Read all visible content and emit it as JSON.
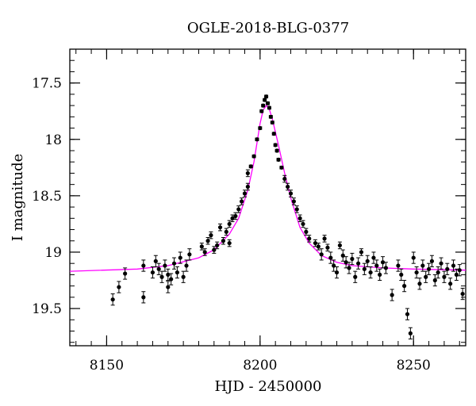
{
  "chart_data": {
    "type": "scatter",
    "title": "OGLE-2018-BLG-0377",
    "xlabel": "HJD - 2450000",
    "ylabel": "I magnitude",
    "xlim": [
      8138,
      8267
    ],
    "ylim": [
      19.83,
      17.2
    ],
    "y_inverted": true,
    "xticks": [
      8150,
      8200,
      8250
    ],
    "yticks": [
      17.5,
      18,
      18.5,
      19,
      19.5
    ],
    "grid": false,
    "legend": "none",
    "colors": {
      "points": "#000000",
      "model": "#ff00ff"
    },
    "model": {
      "name": "",
      "x": [
        8138,
        8160,
        8170,
        8180,
        8185,
        8190,
        8193,
        8196,
        8198,
        8200,
        8201,
        8202,
        8203,
        8204,
        8206,
        8208,
        8210,
        8213,
        8216,
        8220,
        8225,
        8230,
        8240,
        8250,
        8267
      ],
      "y": [
        19.17,
        19.15,
        19.12,
        19.05,
        18.98,
        18.84,
        18.7,
        18.45,
        18.2,
        17.86,
        17.74,
        17.7,
        17.73,
        17.82,
        18.05,
        18.3,
        18.52,
        18.78,
        18.92,
        19.03,
        19.09,
        19.12,
        19.14,
        19.15,
        19.16
      ]
    },
    "series": [
      {
        "name": "",
        "x": [
          8152,
          8154,
          8156,
          8162,
          8162,
          8165,
          8166,
          8167,
          8168,
          8169,
          8170,
          8170,
          8171,
          8172,
          8173,
          8174,
          8175,
          8176,
          8177,
          8181,
          8182,
          8183,
          8184,
          8185,
          8186,
          8187,
          8188,
          8189,
          8190,
          8190,
          8191,
          8192,
          8193,
          8194,
          8195,
          8196,
          8196,
          8197,
          8198,
          8199,
          8200,
          8200.5,
          8201,
          8201.5,
          8202,
          8202.5,
          8203,
          8203.5,
          8204,
          8204.5,
          8205,
          8205.5,
          8206,
          8207,
          8208,
          8209,
          8210,
          8211,
          8212,
          8213,
          8214,
          8215,
          8216,
          8218,
          8219,
          8220,
          8221,
          8222,
          8223,
          8224,
          8225,
          8226,
          8227,
          8228,
          8229,
          8230,
          8231,
          8232,
          8233,
          8234,
          8235,
          8236,
          8237,
          8238,
          8239,
          8240,
          8241,
          8243,
          8245,
          8246,
          8247,
          8248,
          8249,
          8250,
          8251,
          8252,
          8253,
          8254,
          8255,
          8256,
          8257,
          8258,
          8259,
          8260,
          8261,
          8262,
          8263,
          8264,
          8265,
          8266
        ],
        "y": [
          19.42,
          19.31,
          19.19,
          19.4,
          19.12,
          19.18,
          19.08,
          19.15,
          19.22,
          19.12,
          19.2,
          19.31,
          19.24,
          19.1,
          19.18,
          19.05,
          19.22,
          19.12,
          19.02,
          18.95,
          19.0,
          18.9,
          18.85,
          18.98,
          18.94,
          18.78,
          18.9,
          18.82,
          18.75,
          18.92,
          18.7,
          18.68,
          18.62,
          18.55,
          18.48,
          18.42,
          18.3,
          18.24,
          18.15,
          18.0,
          17.9,
          17.75,
          17.7,
          17.65,
          17.62,
          17.68,
          17.72,
          17.8,
          17.85,
          17.95,
          18.05,
          18.1,
          18.18,
          18.25,
          18.35,
          18.42,
          18.48,
          18.55,
          18.62,
          18.7,
          18.75,
          18.82,
          18.88,
          18.92,
          18.95,
          19.02,
          18.88,
          18.96,
          19.05,
          19.12,
          19.18,
          18.94,
          19.03,
          19.09,
          19.14,
          19.06,
          19.22,
          19.1,
          19.0,
          19.15,
          19.08,
          19.18,
          19.05,
          19.12,
          19.2,
          19.09,
          19.14,
          19.38,
          19.12,
          19.2,
          19.3,
          19.55,
          19.72,
          19.05,
          19.18,
          19.28,
          19.12,
          19.22,
          19.15,
          19.08,
          19.25,
          19.18,
          19.1,
          19.22,
          19.15,
          19.28,
          19.12,
          19.2,
          19.16,
          19.37
        ]
      }
    ]
  }
}
